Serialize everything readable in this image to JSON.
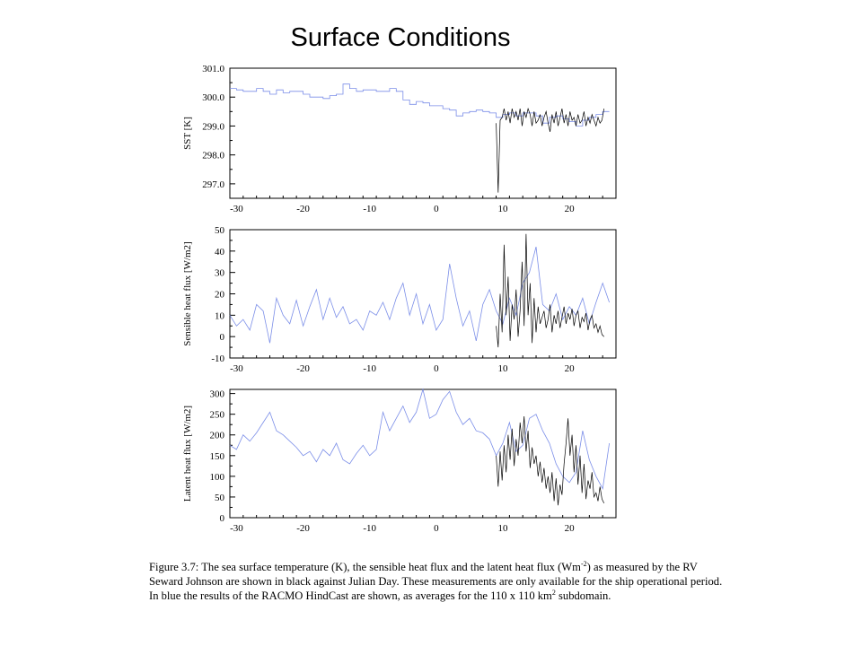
{
  "title": "Surface Conditions",
  "caption": {
    "label": "Figure 3.7:",
    "text_1": " The sea surface temperature (K), the sensible heat flux and the latent heat flux (Wm",
    "sup": "-2",
    "text_2": ") as measured by the RV Seward Johnson are shown in black against Julian Day. These measurements are only available for the ship operational period. In blue the results of the RACMO HindCast are shown, as averages for the 110 x 110 km",
    "sup2": "2",
    "text_3": " subdomain."
  },
  "colors": {
    "model": "#7b8ee8",
    "observed": "#000000",
    "axis": "#000000"
  },
  "chart_data": [
    {
      "type": "line",
      "title": "",
      "xlabel": "",
      "ylabel": "SST [K]",
      "xlim": [
        -31,
        27
      ],
      "ylim": [
        296.5,
        301.0
      ],
      "xticks": [
        -30,
        -20,
        -10,
        0,
        10,
        20
      ],
      "xtick_labels": [
        "-30",
        "-20",
        "-10",
        "0",
        "10",
        "20"
      ],
      "yticks": [
        297.0,
        298.0,
        299.0,
        300.0,
        301.0
      ],
      "ytick_labels": [
        "297.0",
        "298.0",
        "299.0",
        "300.0",
        "301.0"
      ],
      "series": [
        {
          "style": "model",
          "x": [
            -31,
            -30,
            -29,
            -28,
            -27,
            -26,
            -25,
            -24,
            -23,
            -22,
            -21,
            -20,
            -19,
            -18,
            -17,
            -16,
            -15,
            -14,
            -13,
            -12,
            -11,
            -10,
            -9,
            -8,
            -7,
            -6,
            -5,
            -4,
            -3,
            -2,
            -1,
            0,
            1,
            2,
            3,
            4,
            5,
            6,
            7,
            8,
            9,
            10,
            11,
            12,
            13,
            14,
            15,
            16,
            17,
            18,
            19,
            20,
            21,
            22,
            23,
            24,
            25,
            26
          ],
          "y": [
            300.3,
            300.25,
            300.2,
            300.2,
            300.3,
            300.2,
            300.1,
            300.25,
            300.15,
            300.2,
            300.2,
            300.1,
            300.0,
            300.0,
            299.95,
            300.05,
            300.1,
            300.45,
            300.3,
            300.2,
            300.25,
            300.25,
            300.2,
            300.2,
            300.3,
            300.2,
            299.9,
            299.75,
            299.85,
            299.8,
            299.7,
            299.7,
            299.6,
            299.55,
            299.35,
            299.45,
            299.5,
            299.55,
            299.5,
            299.45,
            299.3,
            299.4,
            299.45,
            299.35,
            299.45,
            299.45,
            299.35,
            299.1,
            299.3,
            299.35,
            299.25,
            299.15,
            299.0,
            299.2,
            299.3,
            299.4,
            299.5,
            299.5
          ]
        },
        {
          "style": "observed",
          "x": [
            9,
            9.3,
            9.6,
            9.9,
            10.2,
            10.5,
            10.8,
            11.1,
            11.4,
            11.7,
            12.0,
            12.3,
            12.6,
            12.9,
            13.2,
            13.5,
            13.8,
            14.1,
            14.4,
            14.7,
            15.0,
            15.3,
            15.6,
            15.9,
            16.2,
            16.5,
            16.8,
            17.1,
            17.4,
            17.7,
            18.0,
            18.3,
            18.6,
            18.9,
            19.2,
            19.5,
            19.8,
            20.1,
            20.4,
            20.7,
            21.0,
            21.3,
            21.6,
            21.9,
            22.2,
            22.5,
            22.8,
            23.1,
            23.4,
            23.7,
            24.0,
            24.3,
            24.6,
            24.9,
            25.2
          ],
          "y": [
            299.1,
            296.7,
            299.2,
            299.3,
            299.6,
            299.2,
            299.5,
            299.1,
            299.6,
            299.3,
            299.5,
            299.2,
            299.6,
            299.0,
            299.5,
            299.3,
            299.6,
            299.4,
            299.0,
            299.5,
            299.1,
            299.2,
            299.4,
            299.0,
            299.3,
            299.5,
            299.1,
            298.8,
            299.4,
            299.1,
            299.5,
            299.0,
            299.3,
            299.6,
            299.1,
            299.4,
            299.0,
            299.5,
            299.2,
            299.3,
            299.0,
            299.4,
            299.1,
            299.2,
            299.5,
            299.0,
            299.3,
            299.1,
            299.4,
            299.2,
            299.0,
            299.3,
            299.1,
            299.2,
            299.6
          ]
        }
      ]
    },
    {
      "type": "line",
      "title": "",
      "xlabel": "",
      "ylabel": "Sensible heat flux [W/m2]",
      "xlim": [
        -31,
        27
      ],
      "ylim": [
        -10,
        50
      ],
      "xticks": [
        -30,
        -20,
        -10,
        0,
        10,
        20
      ],
      "xtick_labels": [
        "-30",
        "-20",
        "-10",
        "0",
        "10",
        "20"
      ],
      "yticks": [
        -10,
        0,
        10,
        20,
        30,
        40,
        50
      ],
      "ytick_labels": [
        "-10",
        "0",
        "10",
        "20",
        "30",
        "40",
        "50"
      ],
      "series": [
        {
          "style": "model",
          "x": [
            -31,
            -30,
            -29,
            -28,
            -27,
            -26,
            -25,
            -24,
            -23,
            -22,
            -21,
            -20,
            -19,
            -18,
            -17,
            -16,
            -15,
            -14,
            -13,
            -12,
            -11,
            -10,
            -9,
            -8,
            -7,
            -6,
            -5,
            -4,
            -3,
            -2,
            -1,
            0,
            1,
            2,
            3,
            4,
            5,
            6,
            7,
            8,
            9,
            10,
            11,
            12,
            13,
            14,
            15,
            16,
            17,
            18,
            19,
            20,
            21,
            22,
            23,
            24,
            25,
            26
          ],
          "y": [
            10,
            5,
            8,
            3,
            15,
            12,
            -3,
            18,
            10,
            6,
            17,
            5,
            14,
            22,
            8,
            18,
            9,
            14,
            6,
            8,
            3,
            12,
            10,
            16,
            8,
            18,
            25,
            10,
            20,
            6,
            15,
            3,
            8,
            34,
            18,
            5,
            12,
            -2,
            15,
            22,
            12,
            6,
            18,
            10,
            25,
            30,
            42,
            15,
            12,
            20,
            8,
            14,
            10,
            18,
            6,
            16,
            25,
            16
          ]
        },
        {
          "style": "observed",
          "x": [
            9,
            9.3,
            9.6,
            9.9,
            10.2,
            10.5,
            10.8,
            11.1,
            11.4,
            11.7,
            12.0,
            12.3,
            12.6,
            12.9,
            13.2,
            13.5,
            13.8,
            14.1,
            14.4,
            14.7,
            15.0,
            15.3,
            15.6,
            15.9,
            16.2,
            16.5,
            16.8,
            17.1,
            17.4,
            17.7,
            18.0,
            18.3,
            18.6,
            18.9,
            19.2,
            19.5,
            19.8,
            20.1,
            20.4,
            20.7,
            21.0,
            21.3,
            21.6,
            21.9,
            22.2,
            22.5,
            22.8,
            23.1,
            23.4,
            23.7,
            24.0,
            24.3,
            24.6,
            24.9,
            25.2
          ],
          "y": [
            5,
            -5,
            20,
            2,
            43,
            10,
            28,
            -2,
            15,
            8,
            22,
            0,
            12,
            35,
            5,
            48,
            10,
            25,
            -3,
            18,
            2,
            14,
            6,
            9,
            12,
            4,
            8,
            15,
            2,
            10,
            6,
            12,
            4,
            9,
            14,
            6,
            11,
            8,
            13,
            5,
            10,
            12,
            4,
            9,
            7,
            11,
            3,
            8,
            10,
            4,
            6,
            2,
            5,
            1,
            0
          ]
        }
      ]
    },
    {
      "type": "line",
      "title": "",
      "xlabel": "",
      "ylabel": "Latent heat flux [W/m2]",
      "xlim": [
        -31,
        27
      ],
      "ylim": [
        0,
        310
      ],
      "xticks": [
        -30,
        -20,
        -10,
        0,
        10,
        20
      ],
      "xtick_labels": [
        "-30",
        "-20",
        "-10",
        "0",
        "10",
        "20"
      ],
      "yticks": [
        0,
        50,
        100,
        150,
        200,
        250,
        300
      ],
      "ytick_labels": [
        "0",
        "50",
        "100",
        "150",
        "200",
        "250",
        "300"
      ],
      "series": [
        {
          "style": "model",
          "x": [
            -31,
            -30,
            -29,
            -28,
            -27,
            -26,
            -25,
            -24,
            -23,
            -22,
            -21,
            -20,
            -19,
            -18,
            -17,
            -16,
            -15,
            -14,
            -13,
            -12,
            -11,
            -10,
            -9,
            -8,
            -7,
            -6,
            -5,
            -4,
            -3,
            -2,
            -1,
            0,
            1,
            2,
            3,
            4,
            5,
            6,
            7,
            8,
            9,
            10,
            11,
            12,
            13,
            14,
            15,
            16,
            17,
            18,
            19,
            20,
            21,
            22,
            23,
            24,
            25,
            26
          ],
          "y": [
            175,
            165,
            200,
            185,
            205,
            230,
            255,
            210,
            200,
            185,
            170,
            150,
            160,
            135,
            165,
            150,
            180,
            140,
            130,
            155,
            175,
            150,
            165,
            255,
            210,
            240,
            270,
            230,
            255,
            310,
            240,
            250,
            285,
            305,
            255,
            225,
            240,
            210,
            205,
            190,
            150,
            180,
            230,
            160,
            175,
            240,
            250,
            210,
            180,
            130,
            100,
            85,
            110,
            210,
            140,
            100,
            70,
            180
          ]
        },
        {
          "style": "observed",
          "x": [
            9,
            9.3,
            9.6,
            9.9,
            10.2,
            10.5,
            10.8,
            11.1,
            11.4,
            11.7,
            12.0,
            12.3,
            12.6,
            12.9,
            13.2,
            13.5,
            13.8,
            14.1,
            14.4,
            14.7,
            15.0,
            15.3,
            15.6,
            15.9,
            16.2,
            16.5,
            16.8,
            17.1,
            17.4,
            17.7,
            18.0,
            18.3,
            18.6,
            18.9,
            19.2,
            19.5,
            19.8,
            20.1,
            20.4,
            20.7,
            21.0,
            21.3,
            21.6,
            21.9,
            22.2,
            22.5,
            22.8,
            23.1,
            23.4,
            23.7,
            24.0,
            24.3,
            24.6,
            24.9,
            25.2
          ],
          "y": [
            150,
            75,
            160,
            90,
            175,
            110,
            200,
            140,
            215,
            125,
            190,
            150,
            230,
            180,
            245,
            160,
            210,
            120,
            170,
            130,
            150,
            100,
            135,
            85,
            120,
            70,
            100,
            60,
            110,
            40,
            95,
            30,
            80,
            55,
            130,
            180,
            240,
            150,
            200,
            110,
            175,
            80,
            150,
            60,
            130,
            45,
            90,
            70,
            110,
            50,
            60,
            40,
            75,
            45,
            35
          ]
        }
      ]
    }
  ]
}
